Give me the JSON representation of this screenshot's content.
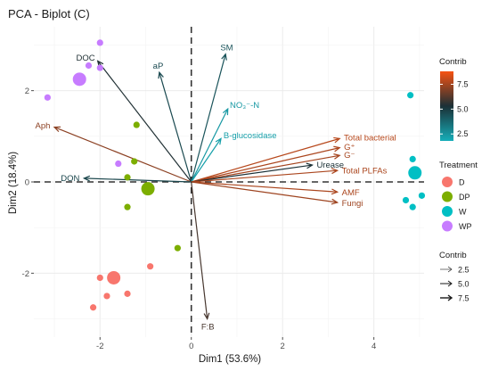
{
  "chart_data": {
    "type": "scatter",
    "title": "PCA - Biplot (C)",
    "xlabel": "Dim1  (53.6%)",
    "ylabel": "Dim2  (18.4%)",
    "xlim": [
      -3.45,
      5.1
    ],
    "ylim": [
      -3.4,
      3.4
    ],
    "xticks": [
      -2,
      0,
      2,
      4
    ],
    "yticks": [
      -2,
      0,
      2
    ],
    "grid": true,
    "legend_position": "right",
    "treatment_colors": {
      "D": "#f8766d",
      "DP": "#7cae00",
      "W": "#00bfc4",
      "WP": "#c77cff"
    },
    "points": [
      {
        "group": "WP",
        "x": -2.0,
        "y": 3.05
      },
      {
        "group": "WP",
        "x": -2.25,
        "y": 2.55
      },
      {
        "group": "WP",
        "x": -2.0,
        "y": 2.5
      },
      {
        "group": "WP",
        "x": -3.15,
        "y": 1.85
      },
      {
        "group": "WP",
        "x": -1.6,
        "y": 0.4
      },
      {
        "group": "DP",
        "x": -1.2,
        "y": 1.25
      },
      {
        "group": "DP",
        "x": -1.25,
        "y": 0.45
      },
      {
        "group": "DP",
        "x": -1.4,
        "y": 0.1
      },
      {
        "group": "DP",
        "x": -0.95,
        "y": -0.15
      },
      {
        "group": "DP",
        "x": -1.4,
        "y": -0.55
      },
      {
        "group": "DP",
        "x": -0.3,
        "y": -1.45
      },
      {
        "group": "D",
        "x": -0.9,
        "y": -1.85
      },
      {
        "group": "D",
        "x": -2.0,
        "y": -2.1
      },
      {
        "group": "D",
        "x": -1.4,
        "y": -2.45
      },
      {
        "group": "D",
        "x": -1.85,
        "y": -2.5
      },
      {
        "group": "D",
        "x": -2.15,
        "y": -2.75
      },
      {
        "group": "W",
        "x": 4.8,
        "y": 1.9
      },
      {
        "group": "W",
        "x": 4.85,
        "y": 0.5
      },
      {
        "group": "W",
        "x": 5.05,
        "y": -0.3
      },
      {
        "group": "W",
        "x": 4.7,
        "y": -0.4
      },
      {
        "group": "W",
        "x": 4.85,
        "y": -0.55
      }
    ],
    "centroids": [
      {
        "group": "WP",
        "x": -2.45,
        "y": 2.25
      },
      {
        "group": "DP",
        "x": -0.95,
        "y": -0.15
      },
      {
        "group": "D",
        "x": -1.7,
        "y": -2.1
      },
      {
        "group": "W",
        "x": 4.9,
        "y": 0.2
      }
    ],
    "loadings": [
      {
        "label": "SM",
        "x": 0.75,
        "y": 2.8,
        "contrib": 4.3
      },
      {
        "label": "aP",
        "x": -0.7,
        "y": 2.4,
        "contrib": 4.6
      },
      {
        "label": "DOC",
        "x": -2.05,
        "y": 2.65,
        "contrib": 5.4
      },
      {
        "label": "NO₃⁻-N",
        "x": 0.8,
        "y": 1.6,
        "contrib": 2.4
      },
      {
        "label": "B-glucosidase",
        "x": 0.65,
        "y": 0.95,
        "contrib": 2.2
      },
      {
        "label": "Aph",
        "x": -3.0,
        "y": 1.2,
        "contrib": 7.1
      },
      {
        "label": "Total bacterial",
        "x": 3.25,
        "y": 0.95,
        "contrib": 7.8
      },
      {
        "label": "G⁺",
        "x": 3.25,
        "y": 0.75,
        "contrib": 7.6
      },
      {
        "label": "G⁻",
        "x": 3.25,
        "y": 0.58,
        "contrib": 7.5
      },
      {
        "label": "Urease",
        "x": 2.65,
        "y": 0.37,
        "contrib": 5.3
      },
      {
        "label": "Total PLFAs",
        "x": 3.2,
        "y": 0.25,
        "contrib": 7.6
      },
      {
        "label": "AMF",
        "x": 3.2,
        "y": -0.22,
        "contrib": 7.6
      },
      {
        "label": "Fungi",
        "x": 3.2,
        "y": -0.45,
        "contrib": 7.4
      },
      {
        "label": "DON",
        "x": -2.35,
        "y": 0.08,
        "contrib": 4.7
      },
      {
        "label": "F:B",
        "x": 0.35,
        "y": -3.0,
        "contrib": 6.0
      }
    ],
    "legend": {
      "contrib_color": {
        "title": "Contrib",
        "ticks": [
          2.5,
          5.0,
          7.5
        ],
        "range": [
          1.8,
          8.8
        ],
        "colors": [
          "#16aeb9",
          "#1b3036",
          "#f65212"
        ]
      },
      "treatment": {
        "title": "Treatment",
        "items": [
          "D",
          "DP",
          "W",
          "WP"
        ]
      },
      "contrib_size": {
        "title": "Contrib",
        "items": [
          "2.5",
          "5.0",
          "7.5"
        ]
      }
    }
  }
}
